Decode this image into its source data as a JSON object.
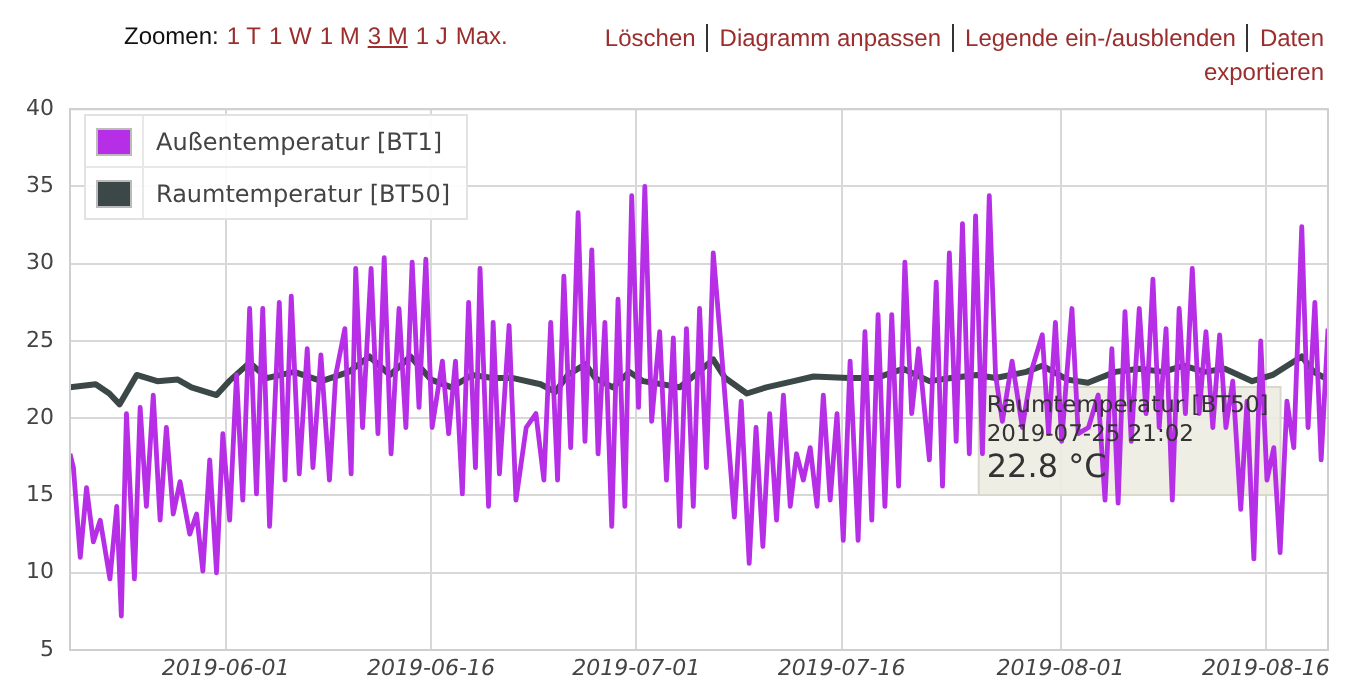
{
  "chart_data": {
    "type": "line",
    "xlim": [
      "2019-05-20T15:00",
      "2019-08-20T13:00"
    ],
    "xticks": [
      "2019-06-01",
      "2019-06-16",
      "2019-07-01",
      "2019-07-16",
      "2019-08-01",
      "2019-08-16"
    ],
    "ylim": [
      5,
      40
    ],
    "yticks": [
      5,
      10,
      15,
      20,
      25,
      30,
      35,
      40
    ],
    "grid": true,
    "legend": "top left",
    "marker": "none",
    "series": [
      {
        "name": "Außentemperatur [BT1]",
        "color": "#b62ee6",
        "x": [
          "2019-05-20T15:00",
          "2019-05-20T21:00",
          "2019-05-21T09:00",
          "2019-05-21T20:00",
          "2019-05-22T08:00",
          "2019-05-22T20:00",
          "2019-05-23T13:00",
          "2019-05-24T01:00",
          "2019-05-24T09:00",
          "2019-05-24T18:00",
          "2019-05-25T08:00",
          "2019-05-25T18:00",
          "2019-05-26T05:00",
          "2019-05-26T17:00",
          "2019-05-27T05:00",
          "2019-05-27T16:00",
          "2019-05-28T04:00",
          "2019-05-28T16:00",
          "2019-05-29T09:00",
          "2019-05-29T21:00",
          "2019-05-30T08:00",
          "2019-05-30T20:00",
          "2019-05-31T08:00",
          "2019-05-31T19:00",
          "2019-06-01T07:00",
          "2019-06-01T19:00",
          "2019-06-02T06:00",
          "2019-06-02T18:00",
          "2019-06-03T06:00",
          "2019-06-03T17:00",
          "2019-06-04T05:00",
          "2019-06-04T22:00",
          "2019-06-05T08:00",
          "2019-06-05T19:00",
          "2019-06-06T09:00",
          "2019-06-06T23:00",
          "2019-06-07T09:00",
          "2019-06-07T23:00",
          "2019-06-08T14:00",
          "2019-06-09T01:00",
          "2019-06-09T17:00",
          "2019-06-10T04:00",
          "2019-06-10T12:00",
          "2019-06-11T00:00",
          "2019-06-11T15:00",
          "2019-06-12T03:00",
          "2019-06-12T14:00",
          "2019-06-13T02:00",
          "2019-06-13T16:00",
          "2019-06-14T04:00",
          "2019-06-14T15:00",
          "2019-06-15T03:00",
          "2019-06-15T15:00",
          "2019-06-16T02:00",
          "2019-06-16T20:00",
          "2019-06-17T07:00",
          "2019-06-17T19:00",
          "2019-06-18T07:00",
          "2019-06-18T18:00",
          "2019-06-19T06:00",
          "2019-06-19T14:00",
          "2019-06-20T05:00",
          "2019-06-20T13:00",
          "2019-06-21T00:00",
          "2019-06-21T17:00",
          "2019-06-22T05:00",
          "2019-06-22T23:00",
          "2019-06-23T16:00",
          "2019-06-24T06:00",
          "2019-06-24T18:00",
          "2019-06-25T06:00",
          "2019-06-25T17:00",
          "2019-06-26T05:00",
          "2019-06-26T18:00",
          "2019-06-27T06:00",
          "2019-06-27T18:00",
          "2019-06-28T05:00",
          "2019-06-28T17:00",
          "2019-06-29T05:00",
          "2019-06-29T16:00",
          "2019-06-30T04:00",
          "2019-06-30T16:00",
          "2019-07-01T04:00",
          "2019-07-01T15:00",
          "2019-07-02T03:00",
          "2019-07-02T17:00",
          "2019-07-03T05:00",
          "2019-07-03T17:00",
          "2019-07-04T04:00",
          "2019-07-04T16:00",
          "2019-07-05T04:00",
          "2019-07-05T15:00",
          "2019-07-06T03:00",
          "2019-07-06T15:00",
          "2019-07-07T05:00",
          "2019-07-08T04:00",
          "2019-07-08T16:00",
          "2019-07-09T06:00",
          "2019-07-09T18:00",
          "2019-07-10T06:00",
          "2019-07-10T18:00",
          "2019-07-11T06:00",
          "2019-07-11T18:00",
          "2019-07-12T06:00",
          "2019-07-12T17:00",
          "2019-07-13T05:00",
          "2019-07-13T17:00",
          "2019-07-14T05:00",
          "2019-07-14T16:00",
          "2019-07-15T04:00",
          "2019-07-15T16:00",
          "2019-07-16T03:00",
          "2019-07-16T15:00",
          "2019-07-17T05:00",
          "2019-07-17T17:00",
          "2019-07-18T05:00",
          "2019-07-18T16:00",
          "2019-07-19T04:00",
          "2019-07-19T16:00",
          "2019-07-20T04:00",
          "2019-07-20T15:00",
          "2019-07-21T03:00",
          "2019-07-21T15:00",
          "2019-07-22T10:00",
          "2019-07-22T22:00",
          "2019-07-23T09:00",
          "2019-07-23T21:00",
          "2019-07-24T09:00",
          "2019-07-24T20:00",
          "2019-07-25T08:00",
          "2019-07-25T19:00",
          "2019-07-26T07:00",
          "2019-07-26T19:00",
          "2019-07-27T06:00",
          "2019-07-27T18:00",
          "2019-07-28T11:00",
          "2019-07-29T05:00",
          "2019-07-29T22:00",
          "2019-07-30T16:00",
          "2019-07-31T03:00",
          "2019-07-31T15:00",
          "2019-08-01T02:00",
          "2019-08-01T20:00",
          "2019-08-02T07:00",
          "2019-08-03T01:00",
          "2019-08-03T18:00",
          "2019-08-04T06:00",
          "2019-08-04T18:00",
          "2019-08-05T05:00",
          "2019-08-05T17:00",
          "2019-08-06T04:00",
          "2019-08-06T18:00",
          "2019-08-07T06:00",
          "2019-08-07T18:00",
          "2019-08-08T05:00",
          "2019-08-08T17:00",
          "2019-08-09T04:00",
          "2019-08-09T16:00",
          "2019-08-10T03:00",
          "2019-08-10T15:00",
          "2019-08-11T03:00",
          "2019-08-11T15:00",
          "2019-08-12T03:00",
          "2019-08-12T15:00",
          "2019-08-13T02:00",
          "2019-08-13T14:00",
          "2019-08-14T04:00",
          "2019-08-14T15:00",
          "2019-08-15T03:00",
          "2019-08-15T15:00",
          "2019-08-16T02:00",
          "2019-08-16T14:00",
          "2019-08-17T01:00",
          "2019-08-17T13:00",
          "2019-08-18T01:00",
          "2019-08-18T15:00",
          "2019-08-19T02:00",
          "2019-08-19T14:00",
          "2019-08-20T01:00",
          "2019-08-20T13:00"
        ],
        "values": [
          17.7,
          16.8,
          11.0,
          15.5,
          12.0,
          13.4,
          9.6,
          14.3,
          7.2,
          20.3,
          9.6,
          20.7,
          14.3,
          21.5,
          13.4,
          19.4,
          13.8,
          15.9,
          12.5,
          13.8,
          10.1,
          17.3,
          10.0,
          19.0,
          13.4,
          22.8,
          14.7,
          27.1,
          15.1,
          27.1,
          13.0,
          27.5,
          16.0,
          27.9,
          16.4,
          24.5,
          16.8,
          24.1,
          16.0,
          22.8,
          25.8,
          16.4,
          29.7,
          19.4,
          29.7,
          19.0,
          30.4,
          17.7,
          27.1,
          19.4,
          30.1,
          20.7,
          30.3,
          19.4,
          23.7,
          19.0,
          23.7,
          15.1,
          27.5,
          16.8,
          29.7,
          14.3,
          26.2,
          16.4,
          26.0,
          14.7,
          19.4,
          20.3,
          16.0,
          26.2,
          16.0,
          29.2,
          18.1,
          33.3,
          18.5,
          30.9,
          17.7,
          26.2,
          13.0,
          27.7,
          14.3,
          34.4,
          20.7,
          35.0,
          19.8,
          25.6,
          16.0,
          25.2,
          13.0,
          25.8,
          14.3,
          27.1,
          16.8,
          30.7,
          24.5,
          13.6,
          21.1,
          10.6,
          19.4,
          11.7,
          20.3,
          13.4,
          21.5,
          14.3,
          17.7,
          16.0,
          18.1,
          14.3,
          21.5,
          14.7,
          20.3,
          12.1,
          23.7,
          12.1,
          25.6,
          13.4,
          26.7,
          14.3,
          26.7,
          15.6,
          30.1,
          20.3,
          24.5,
          17.3,
          28.8,
          15.6,
          30.7,
          18.5,
          32.6,
          17.7,
          33.1,
          17.7,
          34.4,
          22.8,
          19.8,
          23.7,
          19.4,
          23.2,
          25.4,
          19.0,
          26.2,
          18.5,
          27.1,
          19.0,
          19.4,
          21.5,
          14.7,
          24.5,
          14.5,
          26.9,
          18.5,
          27.1,
          20.3,
          29.0,
          19.4,
          25.8,
          14.7,
          27.1,
          20.3,
          29.7,
          20.3,
          25.6,
          19.4,
          25.4,
          19.4,
          22.4,
          14.1,
          21.1,
          10.9,
          25.0,
          16.0,
          18.1,
          11.3,
          21.1,
          18.1,
          32.4,
          19.4,
          27.5,
          17.3,
          25.8
        ]
      },
      {
        "name": "Raumtemperatur [BT50]",
        "color": "#3b4847",
        "x": [
          "2019-05-20T15:00",
          "2019-05-22T12:00",
          "2019-05-23T12:00",
          "2019-05-24T06:00",
          "2019-05-25T12:00",
          "2019-05-27T00:00",
          "2019-05-28T12:00",
          "2019-05-29T12:00",
          "2019-05-31T08:00",
          "2019-06-01T06:00",
          "2019-06-02T18:00",
          "2019-06-04T00:00",
          "2019-06-06T00:00",
          "2019-06-08T00:00",
          "2019-06-10T00:00",
          "2019-06-11T12:00",
          "2019-06-13T00:00",
          "2019-06-14T12:00",
          "2019-06-16T00:00",
          "2019-06-17T12:00",
          "2019-06-19T00:00",
          "2019-06-20T12:00",
          "2019-06-22T00:00",
          "2019-06-24T00:00",
          "2019-06-25T02:00",
          "2019-06-26T00:00",
          "2019-06-27T07:00",
          "2019-06-28T00:00",
          "2019-06-29T07:00",
          "2019-06-30T12:00",
          "2019-07-01T12:00",
          "2019-07-04T04:00",
          "2019-07-05T00:00",
          "2019-07-06T15:00",
          "2019-07-07T12:00",
          "2019-07-09T02:00",
          "2019-07-10T12:00",
          "2019-07-12T12:00",
          "2019-07-13T23:00",
          "2019-07-16T12:00",
          "2019-07-18T12:00",
          "2019-07-20T12:00",
          "2019-07-22T10:00",
          "2019-07-24T00:00",
          "2019-07-25T21:02",
          "2019-07-27T06:00",
          "2019-07-29T12:00",
          "2019-07-30T16:00",
          "2019-08-01T12:00",
          "2019-08-03T00:00",
          "2019-08-05T00:00",
          "2019-08-06T18:00",
          "2019-08-08T12:00",
          "2019-08-10T00:00",
          "2019-08-11T12:00",
          "2019-08-13T00:00",
          "2019-08-15T00:00",
          "2019-08-16T12:00",
          "2019-08-18T15:00",
          "2019-08-19T12:00",
          "2019-08-20T13:00"
        ],
        "values": [
          22.0,
          22.2,
          21.6,
          20.9,
          22.8,
          22.4,
          22.5,
          22.0,
          21.5,
          22.4,
          23.6,
          22.6,
          23.0,
          22.4,
          23.0,
          24.0,
          22.8,
          24.0,
          22.5,
          22.0,
          22.8,
          22.6,
          22.6,
          22.2,
          21.7,
          22.8,
          23.5,
          22.6,
          22.0,
          23.0,
          22.4,
          22.0,
          22.6,
          23.8,
          22.6,
          21.6,
          22.0,
          22.4,
          22.7,
          22.6,
          22.6,
          23.2,
          22.4,
          22.6,
          22.8,
          22.6,
          23.0,
          23.4,
          22.5,
          22.3,
          23.0,
          23.2,
          23.0,
          23.4,
          23.0,
          23.2,
          22.4,
          22.8,
          24.0,
          23.0,
          22.5
        ]
      }
    ],
    "annotations": [
      "Zoomen:",
      "1 T",
      "1 W",
      "1 M",
      "3 M",
      "1 J",
      "Max.",
      "Löschen",
      "Diagramm anpassen",
      "Legende ein-/ausblenden",
      "Daten exportieren",
      {
        "text": "Raumtemperatur [BT50]\n2019-07-25 21:02\n22.8 °C",
        "x": "2019-07-25T21:02",
        "y": 22.8
      }
    ]
  }
}
